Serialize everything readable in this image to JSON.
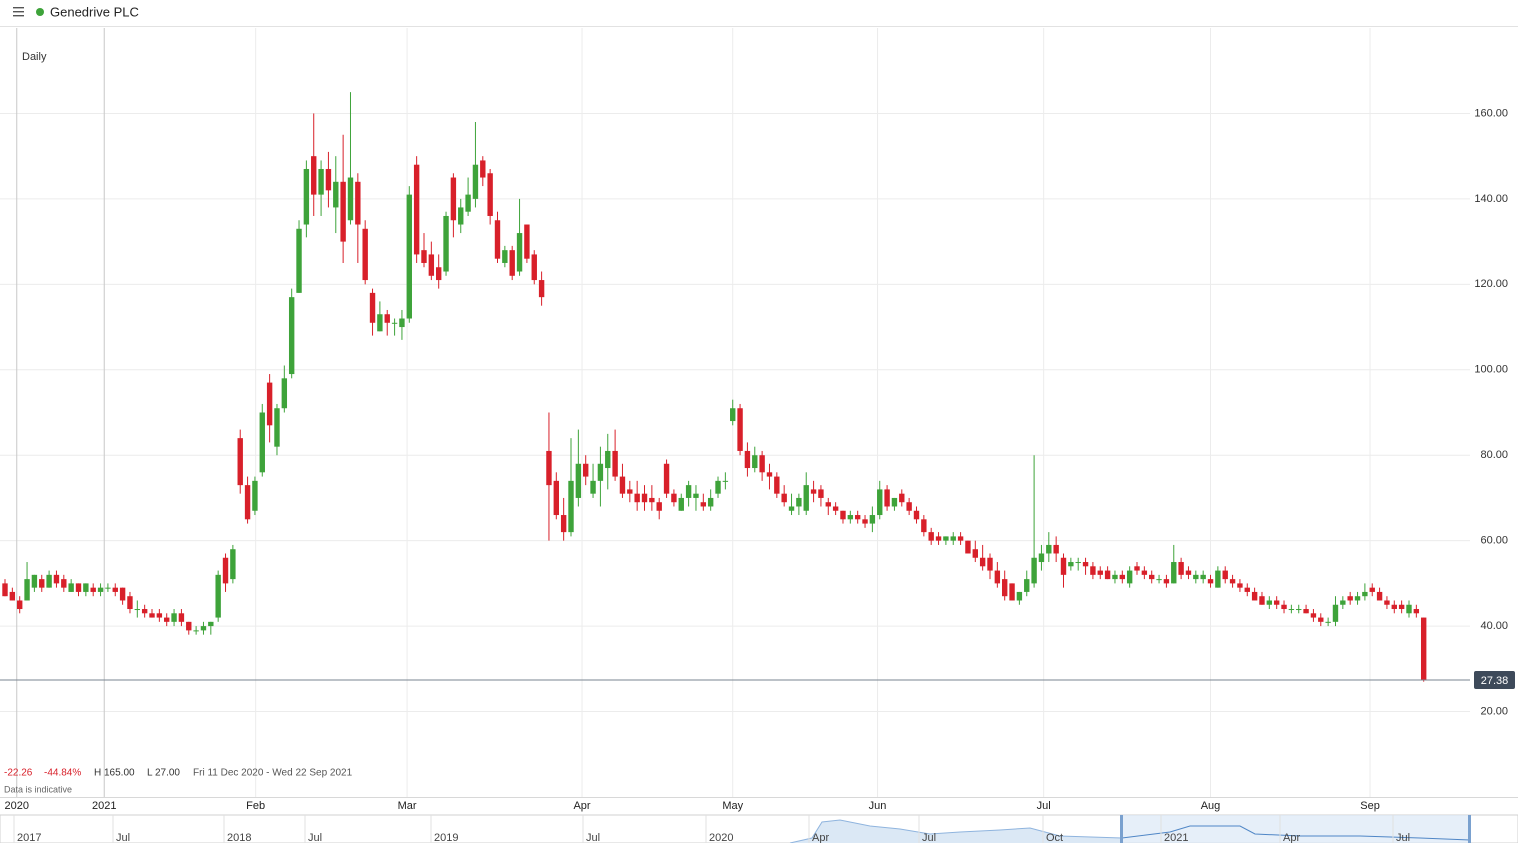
{
  "header": {
    "title": "Genedrive PLC"
  },
  "chart_data": {
    "type": "candlestick",
    "interval": "Daily",
    "up_color": "#3ea33a",
    "down_color": "#d8202a",
    "xlim": [
      -0.68,
      199.3
    ],
    "ylim": [
      0,
      180
    ],
    "yticks": [
      {
        "value": 20,
        "label": "20.00"
      },
      {
        "value": 40,
        "label": "40.00"
      },
      {
        "value": 60,
        "label": "60.00"
      },
      {
        "value": 80,
        "label": "80.00"
      },
      {
        "value": 100,
        "label": "100.00"
      },
      {
        "value": 120,
        "label": "120.00"
      },
      {
        "value": 140,
        "label": "140.00"
      },
      {
        "value": 160,
        "label": "160.00"
      }
    ],
    "xticks": [
      {
        "value": 1.6,
        "label": "2020"
      },
      {
        "value": 13.5,
        "label": "2021"
      },
      {
        "value": 34.1,
        "label": "Feb"
      },
      {
        "value": 54.7,
        "label": "Mar"
      },
      {
        "value": 78.5,
        "label": "Apr"
      },
      {
        "value": 99.0,
        "label": "May"
      },
      {
        "value": 118.7,
        "label": "Jun"
      },
      {
        "value": 141.3,
        "label": "Jul"
      },
      {
        "value": 164.0,
        "label": "Aug"
      },
      {
        "value": 185.7,
        "label": "Sep"
      }
    ],
    "grid": true,
    "ohlc": [
      [
        50,
        51,
        47,
        47
      ],
      [
        48,
        49,
        46,
        46
      ],
      [
        46,
        47,
        43,
        44
      ],
      [
        46,
        55,
        46,
        51
      ],
      [
        49,
        52,
        48,
        52
      ],
      [
        51,
        52,
        48,
        49
      ],
      [
        49,
        53,
        49,
        52
      ],
      [
        52,
        53,
        49,
        50
      ],
      [
        51,
        52,
        48,
        49
      ],
      [
        48,
        51,
        48,
        50
      ],
      [
        50,
        50,
        47,
        48
      ],
      [
        48,
        50,
        47,
        50
      ],
      [
        49,
        50,
        47,
        48
      ],
      [
        48,
        50,
        47,
        49
      ],
      [
        49,
        50,
        48,
        49
      ],
      [
        49,
        50,
        47,
        48
      ],
      [
        49,
        49,
        45,
        46
      ],
      [
        47,
        48,
        43,
        44
      ],
      [
        44,
        46,
        42,
        44
      ],
      [
        44,
        45,
        42,
        43
      ],
      [
        43,
        44,
        42,
        42
      ],
      [
        43,
        44,
        41,
        42
      ],
      [
        42,
        43,
        40,
        41
      ],
      [
        41,
        44,
        40,
        43
      ],
      [
        43,
        44,
        40,
        41
      ],
      [
        41,
        41,
        38,
        39
      ],
      [
        39,
        40,
        38,
        39
      ],
      [
        39,
        41,
        38,
        40
      ],
      [
        40,
        41,
        38,
        41
      ],
      [
        42,
        53,
        41,
        52
      ],
      [
        56,
        57,
        48,
        50
      ],
      [
        51,
        59,
        50,
        58
      ],
      [
        84,
        86,
        71,
        73
      ],
      [
        73,
        75,
        64,
        65
      ],
      [
        67,
        75,
        66,
        74
      ],
      [
        76,
        92,
        75,
        90
      ],
      [
        97,
        99,
        83,
        87
      ],
      [
        82,
        92,
        80,
        91
      ],
      [
        91,
        101,
        90,
        98
      ],
      [
        99,
        119,
        98,
        117
      ],
      [
        118,
        135,
        118,
        133
      ],
      [
        134,
        149,
        131,
        147
      ],
      [
        150,
        160,
        136,
        141
      ],
      [
        141,
        149,
        136,
        147
      ],
      [
        147,
        151,
        138,
        142
      ],
      [
        138,
        150,
        132,
        144
      ],
      [
        144,
        155,
        125,
        130
      ],
      [
        135,
        165,
        134,
        145
      ],
      [
        144,
        146,
        125,
        134
      ],
      [
        133,
        135,
        120,
        121
      ],
      [
        118,
        119,
        108,
        111
      ],
      [
        109,
        116,
        109,
        113
      ],
      [
        113,
        114,
        108,
        111
      ],
      [
        111,
        112,
        108,
        111
      ],
      [
        110,
        114,
        107,
        112
      ],
      [
        112,
        143,
        111,
        141
      ],
      [
        148,
        150,
        125,
        127
      ],
      [
        128,
        132,
        124,
        125
      ],
      [
        127,
        130,
        121,
        122
      ],
      [
        124,
        127,
        119,
        121
      ],
      [
        123,
        137,
        122,
        136
      ],
      [
        145,
        146,
        131,
        135
      ],
      [
        134,
        140,
        132,
        138
      ],
      [
        137,
        145,
        136,
        141
      ],
      [
        140,
        158,
        138,
        148
      ],
      [
        149,
        150,
        143,
        145
      ],
      [
        146,
        147,
        134,
        136
      ],
      [
        135,
        137,
        125,
        126
      ],
      [
        125,
        129,
        124,
        128
      ],
      [
        128,
        129,
        121,
        122
      ],
      [
        123,
        140,
        122,
        132
      ],
      [
        134,
        134,
        125,
        126
      ],
      [
        127,
        128,
        120,
        121
      ],
      [
        121,
        123,
        115,
        117
      ],
      [
        81,
        90,
        60,
        73
      ],
      [
        74,
        76,
        65,
        66
      ],
      [
        66,
        70,
        60,
        62
      ],
      [
        62,
        84,
        61,
        74
      ],
      [
        70,
        86,
        68,
        78
      ],
      [
        78,
        80,
        73,
        75
      ],
      [
        71,
        78,
        70,
        74
      ],
      [
        74,
        82,
        68,
        78
      ],
      [
        77,
        85,
        72,
        81
      ],
      [
        81,
        86,
        74,
        75
      ],
      [
        75,
        78,
        70,
        71
      ],
      [
        72,
        74,
        69,
        71
      ],
      [
        71,
        74,
        67,
        69
      ],
      [
        71,
        73,
        67,
        69
      ],
      [
        70,
        73,
        67,
        69
      ],
      [
        69,
        70,
        65,
        67
      ],
      [
        78,
        79,
        70,
        71
      ],
      [
        71,
        72,
        68,
        69
      ],
      [
        67,
        71,
        67,
        70
      ],
      [
        70,
        74,
        68,
        73
      ],
      [
        70,
        73,
        67,
        71
      ],
      [
        69,
        71,
        67,
        68
      ],
      [
        68,
        72,
        67,
        70
      ],
      [
        71,
        75,
        70,
        74
      ],
      [
        74,
        76,
        72,
        74
      ],
      [
        88,
        93,
        87,
        91
      ],
      [
        91,
        92,
        80,
        81
      ],
      [
        81,
        83,
        75,
        77
      ],
      [
        77,
        82,
        76,
        80
      ],
      [
        80,
        81,
        74,
        76
      ],
      [
        76,
        78,
        72,
        75
      ],
      [
        75,
        76,
        70,
        71
      ],
      [
        71,
        73,
        68,
        69
      ],
      [
        67,
        71,
        66,
        68
      ],
      [
        68,
        71,
        66,
        70
      ],
      [
        67,
        76,
        66,
        73
      ],
      [
        72,
        74,
        69,
        71
      ],
      [
        72,
        73,
        68,
        70
      ],
      [
        69,
        70,
        66,
        68
      ],
      [
        68,
        69,
        66,
        67
      ],
      [
        67,
        67,
        64,
        65
      ],
      [
        65,
        67,
        64,
        66
      ],
      [
        66,
        67,
        64,
        65
      ],
      [
        65,
        66,
        63,
        64
      ],
      [
        64,
        68,
        62,
        66
      ],
      [
        66,
        74,
        65,
        72
      ],
      [
        72,
        73,
        67,
        68
      ],
      [
        68,
        70,
        67,
        70
      ],
      [
        71,
        72,
        68,
        69
      ],
      [
        69,
        70,
        66,
        67
      ],
      [
        67,
        68,
        64,
        65
      ],
      [
        65,
        66,
        61,
        62
      ],
      [
        62,
        63,
        59,
        60
      ],
      [
        61,
        62,
        59,
        60
      ],
      [
        60,
        61,
        59,
        61
      ],
      [
        60,
        62,
        59,
        61
      ],
      [
        61,
        62,
        59,
        60
      ],
      [
        60,
        60,
        57,
        57
      ],
      [
        58,
        60,
        55,
        56
      ],
      [
        56,
        59,
        53,
        54
      ],
      [
        56,
        57,
        51,
        53
      ],
      [
        53,
        55,
        49,
        50
      ],
      [
        51,
        53,
        46,
        47
      ],
      [
        50,
        50,
        46,
        46
      ],
      [
        46,
        48,
        45,
        48
      ],
      [
        48,
        53,
        47,
        51
      ],
      [
        50,
        80,
        49,
        56
      ],
      [
        55,
        59,
        53,
        57
      ],
      [
        57,
        62,
        55,
        59
      ],
      [
        59,
        61,
        55,
        57
      ],
      [
        56,
        57,
        49,
        52
      ],
      [
        54,
        56,
        53,
        55
      ],
      [
        55,
        56,
        53,
        55
      ],
      [
        55,
        56,
        52,
        54
      ],
      [
        54,
        55,
        51,
        52
      ],
      [
        53,
        54,
        51,
        52
      ],
      [
        53,
        54,
        51,
        51
      ],
      [
        51,
        53,
        50,
        52
      ],
      [
        52,
        53,
        50,
        51
      ],
      [
        50,
        54,
        49,
        53
      ],
      [
        54,
        55,
        52,
        53
      ],
      [
        53,
        54,
        51,
        52
      ],
      [
        52,
        53,
        50,
        51
      ],
      [
        51,
        52,
        50,
        51
      ],
      [
        51,
        52,
        49,
        50
      ],
      [
        50,
        59,
        50,
        55
      ],
      [
        55,
        56,
        51,
        52
      ],
      [
        53,
        54,
        51,
        52
      ],
      [
        51,
        53,
        50,
        52
      ],
      [
        51,
        53,
        50,
        52
      ],
      [
        51,
        52,
        49,
        50
      ],
      [
        49,
        54,
        49,
        53
      ],
      [
        53,
        54,
        50,
        51
      ],
      [
        51,
        52,
        49,
        50
      ],
      [
        50,
        51,
        48,
        49
      ],
      [
        49,
        50,
        47,
        48
      ],
      [
        48,
        49,
        46,
        46
      ],
      [
        47,
        48,
        45,
        45
      ],
      [
        45,
        47,
        44,
        46
      ],
      [
        46,
        47,
        44,
        45
      ],
      [
        45,
        46,
        43,
        44
      ],
      [
        44,
        45,
        43,
        44
      ],
      [
        44,
        45,
        43,
        44
      ],
      [
        44,
        45,
        43,
        43
      ],
      [
        43,
        44,
        41,
        42
      ],
      [
        42,
        43,
        40,
        41
      ],
      [
        41,
        42,
        40,
        41
      ],
      [
        41,
        47,
        40,
        45
      ],
      [
        45,
        47,
        44,
        46
      ],
      [
        47,
        48,
        45,
        46
      ],
      [
        46,
        48,
        45,
        47
      ],
      [
        47,
        50,
        46,
        48
      ],
      [
        49,
        50,
        47,
        48
      ],
      [
        48,
        49,
        46,
        46
      ],
      [
        46,
        47,
        44,
        45
      ],
      [
        45,
        46,
        43,
        44
      ],
      [
        45,
        46,
        43,
        44
      ],
      [
        43,
        46,
        42,
        45
      ],
      [
        44,
        45,
        42,
        43
      ],
      [
        42,
        42,
        27,
        27.38
      ]
    ],
    "stats": [
      "-22.26",
      "-44.84%",
      "H 165.00",
      "L 27.00",
      "Fri 11 Dec 2020 - Wed 22 Sep 2021"
    ],
    "note": "Data is indicative"
  },
  "navigator": {
    "labels": [
      "2017",
      "Jul",
      "2018",
      "Jul",
      "2019",
      "Jul",
      "2020",
      "Apr",
      "Jul",
      "Oct",
      "2021",
      "Apr",
      "Jul"
    ]
  }
}
